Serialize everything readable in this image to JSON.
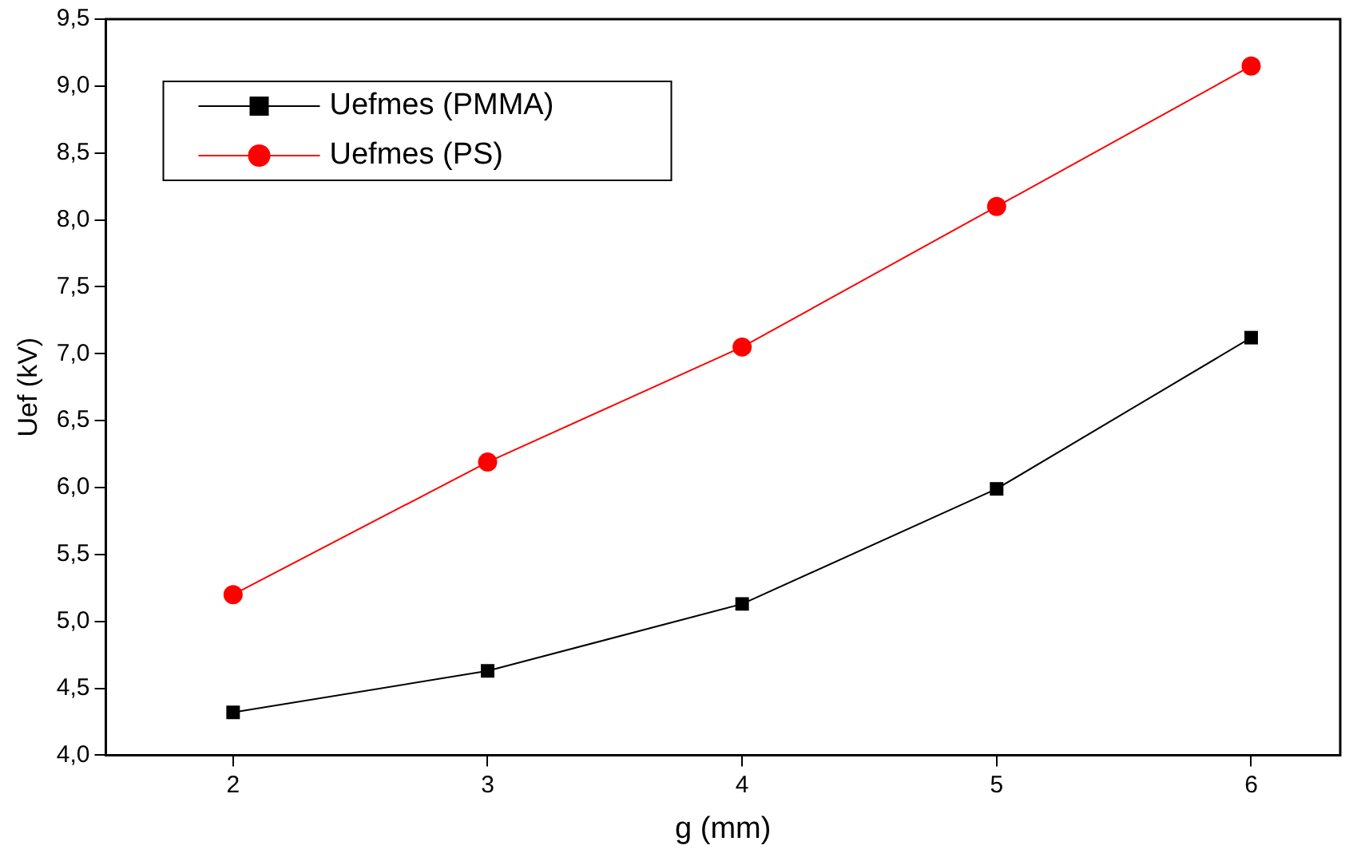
{
  "chart_data": {
    "type": "line",
    "xlabel": "g (mm)",
    "ylabel": "Uef (kV)",
    "x": [
      2,
      3,
      4,
      5,
      6
    ],
    "series": [
      {
        "name": "Uefmes (PMMA)",
        "color": "#000000",
        "marker": "square",
        "values": [
          4.32,
          4.63,
          5.13,
          5.99,
          7.12
        ]
      },
      {
        "name": "Uefmes (PS)",
        "color": "#ff0000",
        "marker": "circle",
        "values": [
          5.2,
          6.19,
          7.05,
          8.1,
          9.15
        ]
      }
    ],
    "xlim": [
      1.5,
      6.35
    ],
    "xticks": [
      2,
      3,
      4,
      5,
      6
    ],
    "ylim": [
      4,
      9.5
    ],
    "yticks": [
      {
        "value": 4,
        "label": "4,0"
      },
      {
        "value": 4.5,
        "label": "4,5"
      },
      {
        "value": 5,
        "label": "5,0"
      },
      {
        "value": 5.5,
        "label": "5,5"
      },
      {
        "value": 6,
        "label": "6,0"
      },
      {
        "value": 6.5,
        "label": "6,5"
      },
      {
        "value": 7,
        "label": "7,0"
      },
      {
        "value": 7.5,
        "label": "7,5"
      },
      {
        "value": 8,
        "label": "8,0"
      },
      {
        "value": 8.5,
        "label": "8,5"
      },
      {
        "value": 9,
        "label": "9,0"
      },
      {
        "value": 9.5,
        "label": "9,5"
      }
    ],
    "grid": false,
    "legend": "top left"
  }
}
